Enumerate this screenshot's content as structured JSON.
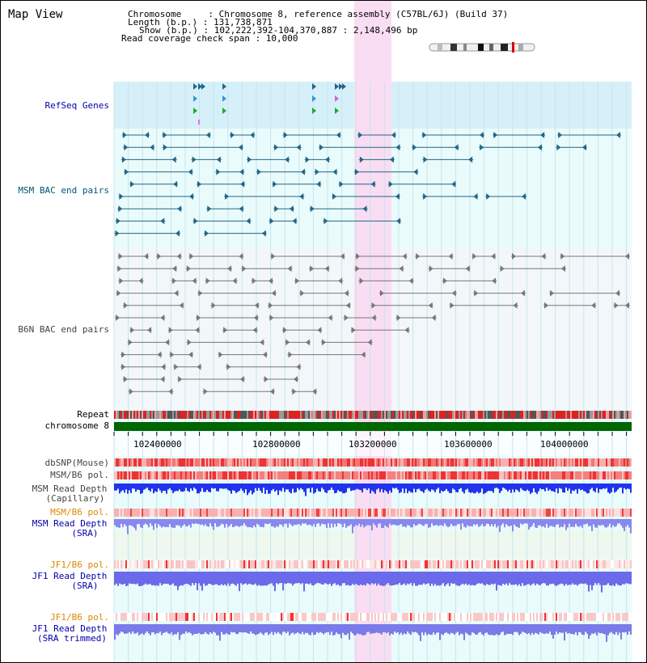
{
  "header": {
    "title": "Map View",
    "info_lines": [
      "Chromosome     : Chromosome 8, reference assembly (C57BL/6J) (Build 37)",
      "Length (b.p.) : 131,738,871",
      "Show (b.p.) : 102,222,392-104,370,887 : 2,148,496 bp",
      "Read coverage check span : 10,000"
    ]
  },
  "colors": {
    "refseq_bg": "#d6f0fa",
    "track_bg": "#e9fbfb",
    "highlight": "#f9ddf2",
    "msm_bac": "#226688",
    "b6n_bac": "#777777",
    "chrom_bar": "#006600",
    "depth_blue": "#2233ee",
    "depth_light": "#8888ee"
  },
  "tracks": {
    "refseq": "RefSeq Genes",
    "msm_bac": "MSM BAC end pairs",
    "b6n_bac": "B6N BAC end pairs",
    "repeat": "Repeat",
    "chromosome": "chromosome 8",
    "dbsnp": "dbSNP(Mouse)",
    "msm_b6_pol": "MSM/B6 pol.",
    "msm_depth_cap": [
      "MSM Read Depth",
      "(Capillary)"
    ],
    "msm_b6_pol_2": "MSM/B6 pol.",
    "msm_depth_sra": [
      "MSM Read Depth",
      "(SRA)"
    ],
    "jf1_b6_pol": "JF1/B6 pol.",
    "jf1_depth_sra": [
      "JF1 Read Depth",
      "(SRA)"
    ],
    "jf1_b6_pol_2": "JF1/B6 pol.",
    "jf1_depth_trim": [
      "JF1 Read Depth",
      "(SRA trimmed)"
    ]
  },
  "axis": {
    "ticks": [
      "102400000",
      "102800000",
      "103200000",
      "103600000",
      "104000000"
    ]
  }
}
